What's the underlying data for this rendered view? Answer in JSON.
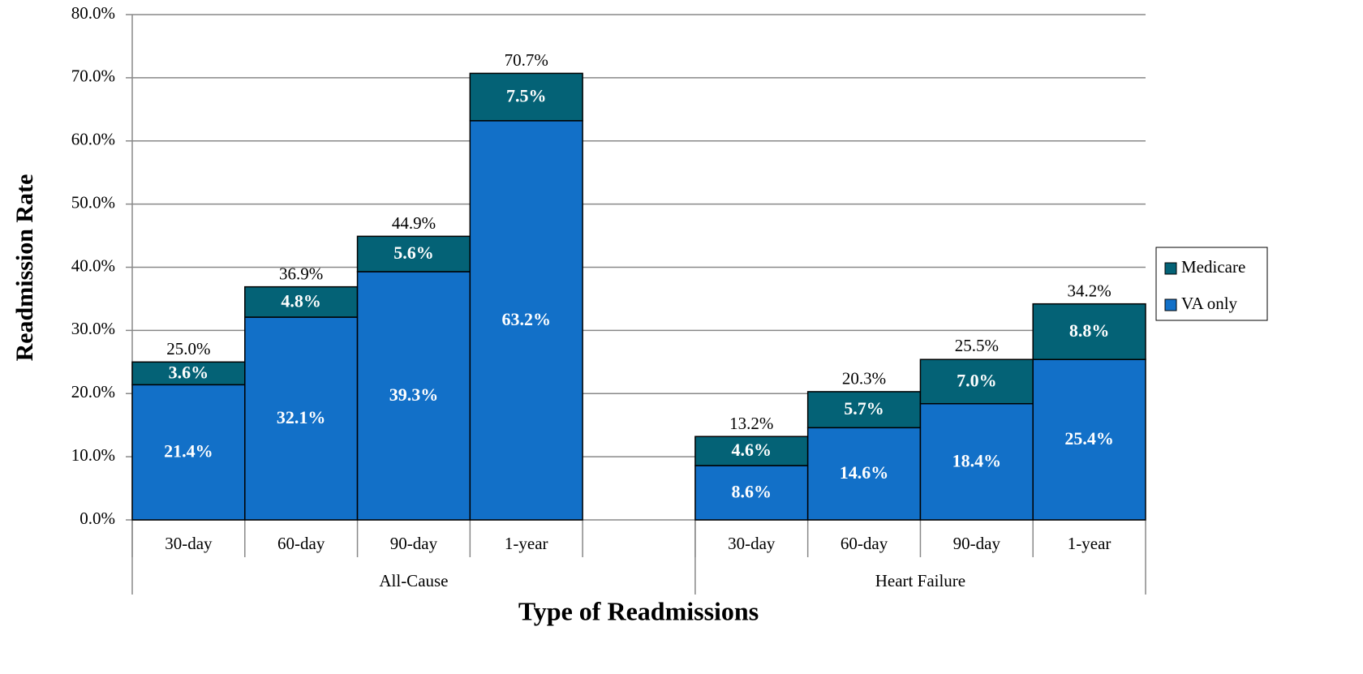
{
  "chart_data": {
    "type": "stacked_bar",
    "y_label": "Readmission Rate",
    "x_label": "Type of Readmissions",
    "groups": [
      {
        "name": "All-Cause",
        "categories": [
          "30-day",
          "60-day",
          "90-day",
          "1-year",
          null
        ]
      },
      {
        "name": "Heart Failure",
        "categories": [
          "30-day",
          "60-day",
          "90-day",
          "1-year"
        ]
      }
    ],
    "series": [
      {
        "name": "VA only",
        "color": "#1270c8",
        "values": [
          21.4,
          32.1,
          39.3,
          63.2,
          null,
          8.6,
          14.6,
          18.4,
          25.4
        ],
        "value_labels": [
          "21.4%",
          "32.1%",
          "39.3%",
          "63.2%",
          null,
          "8.6%",
          "14.6%",
          "18.4%",
          "25.4%"
        ]
      },
      {
        "name": "Medicare",
        "color": "#046276",
        "values": [
          3.6,
          4.8,
          5.6,
          7.5,
          null,
          4.6,
          5.7,
          7.0,
          8.8
        ],
        "value_labels": [
          "3.6%",
          "4.8%",
          "5.6%",
          "7.5%",
          null,
          "4.6%",
          "5.7%",
          "7.0%",
          "8.8%"
        ]
      }
    ],
    "totals": [
      25.0,
      36.9,
      44.9,
      70.7,
      null,
      13.2,
      20.3,
      25.5,
      34.2
    ],
    "totals_labels": [
      "25.0%",
      "36.9%",
      "44.9%",
      "70.7%",
      null,
      "13.2%",
      "20.3%",
      "25.5%",
      "34.2%"
    ],
    "ylim": [
      0,
      80
    ],
    "yticks": [
      {
        "value": 0,
        "label": "0.0%"
      },
      {
        "value": 10,
        "label": "10.0%"
      },
      {
        "value": 20,
        "label": "20.0%"
      },
      {
        "value": 30,
        "label": "30.0%"
      },
      {
        "value": 40,
        "label": "40.0%"
      },
      {
        "value": 50,
        "label": "50.0%"
      },
      {
        "value": 60,
        "label": "60.0%"
      },
      {
        "value": 70,
        "label": "70.0%"
      },
      {
        "value": 80,
        "label": "80.0%"
      }
    ],
    "grid": true,
    "legend": "right"
  }
}
